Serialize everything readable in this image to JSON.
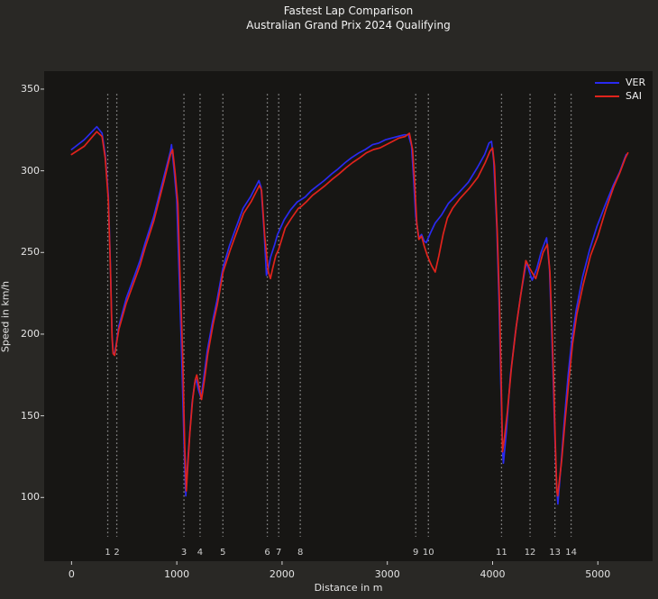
{
  "title": {
    "line1": "Fastest Lap Comparison",
    "line2": "Australian Grand Prix 2024 Qualifying"
  },
  "colors": {
    "figure_bg": "#292825",
    "axes_bg": "#171614",
    "text": "#ececec",
    "ver_blue": "#2a2af0",
    "sai_red": "#e0231c",
    "corner_line": "#919191"
  },
  "legend": {
    "entries": [
      {
        "label": "VER",
        "color": "#2a2af0"
      },
      {
        "label": "SAI",
        "color": "#e0231c"
      }
    ]
  },
  "chart_data": {
    "type": "line",
    "title": "Fastest Lap Comparison — Australian Grand Prix 2024 Qualifying",
    "xlabel": "Distance in m",
    "ylabel": "Speed in km/h",
    "xlim": [
      -260,
      5520
    ],
    "ylim": [
      61,
      361
    ],
    "x_ticks": [
      0,
      1000,
      2000,
      3000,
      4000,
      5000
    ],
    "y_ticks": [
      100,
      150,
      200,
      250,
      300,
      350
    ],
    "grid": false,
    "legend_position": "upper right",
    "corners": {
      "line_style": "dotted",
      "line_span_kmh": [
        76,
        347
      ],
      "label_kmh": 66,
      "numbers": [
        1,
        2,
        3,
        4,
        5,
        6,
        7,
        8,
        9,
        10,
        11,
        12,
        13,
        14
      ],
      "distances_m": [
        344,
        430,
        1068,
        1221,
        1438,
        1860,
        1968,
        2173,
        3270,
        3390,
        4085,
        4356,
        4592,
        4746
      ]
    },
    "series": [
      {
        "name": "VER",
        "color": "#2a2af0",
        "points": [
          [
            0,
            313
          ],
          [
            120,
            319
          ],
          [
            240,
            327
          ],
          [
            290,
            323
          ],
          [
            320,
            310
          ],
          [
            350,
            285
          ],
          [
            370,
            240
          ],
          [
            385,
            200
          ],
          [
            395,
            189
          ],
          [
            410,
            188
          ],
          [
            427,
            195
          ],
          [
            450,
            205
          ],
          [
            520,
            222
          ],
          [
            600,
            236
          ],
          [
            650,
            245
          ],
          [
            700,
            256
          ],
          [
            780,
            272
          ],
          [
            880,
            297
          ],
          [
            940,
            312
          ],
          [
            950,
            316
          ],
          [
            975,
            300
          ],
          [
            1000,
            282
          ],
          [
            1020,
            240
          ],
          [
            1045,
            190
          ],
          [
            1068,
            135
          ],
          [
            1085,
            101
          ],
          [
            1100,
            118
          ],
          [
            1120,
            137
          ],
          [
            1145,
            158
          ],
          [
            1170,
            170
          ],
          [
            1184,
            172
          ],
          [
            1205,
            166
          ],
          [
            1230,
            161
          ],
          [
            1260,
            175
          ],
          [
            1290,
            190
          ],
          [
            1340,
            208
          ],
          [
            1380,
            220
          ],
          [
            1436,
            240
          ],
          [
            1500,
            254
          ],
          [
            1550,
            263
          ],
          [
            1630,
            277
          ],
          [
            1700,
            284
          ],
          [
            1780,
            294
          ],
          [
            1800,
            290
          ],
          [
            1830,
            262
          ],
          [
            1852,
            236
          ],
          [
            1870,
            240
          ],
          [
            1890,
            247
          ],
          [
            1930,
            255
          ],
          [
            1957,
            261
          ],
          [
            2020,
            270
          ],
          [
            2080,
            276
          ],
          [
            2145,
            281
          ],
          [
            2171,
            282
          ],
          [
            2220,
            284
          ],
          [
            2280,
            288
          ],
          [
            2340,
            291
          ],
          [
            2400,
            294
          ],
          [
            2470,
            298
          ],
          [
            2530,
            301
          ],
          [
            2600,
            305
          ],
          [
            2660,
            308
          ],
          [
            2730,
            311
          ],
          [
            2790,
            313
          ],
          [
            2860,
            316
          ],
          [
            2920,
            317
          ],
          [
            2980,
            319
          ],
          [
            3040,
            320
          ],
          [
            3100,
            321
          ],
          [
            3160,
            322
          ],
          [
            3200,
            322
          ],
          [
            3230,
            315
          ],
          [
            3250,
            295
          ],
          [
            3270,
            272
          ],
          [
            3300,
            259
          ],
          [
            3325,
            261
          ],
          [
            3350,
            257
          ],
          [
            3370,
            256
          ],
          [
            3410,
            262
          ],
          [
            3455,
            268
          ],
          [
            3515,
            273
          ],
          [
            3580,
            280
          ],
          [
            3685,
            287
          ],
          [
            3770,
            293
          ],
          [
            3855,
            302
          ],
          [
            3925,
            310
          ],
          [
            3966,
            317
          ],
          [
            3990,
            318
          ],
          [
            4010,
            306
          ],
          [
            4040,
            265
          ],
          [
            4060,
            222
          ],
          [
            4078,
            170
          ],
          [
            4095,
            128
          ],
          [
            4103,
            121
          ],
          [
            4130,
            140
          ],
          [
            4170,
            175
          ],
          [
            4215,
            200
          ],
          [
            4265,
            223
          ],
          [
            4310,
            240
          ],
          [
            4325,
            244
          ],
          [
            4350,
            238
          ],
          [
            4376,
            233
          ],
          [
            4420,
            240
          ],
          [
            4460,
            250
          ],
          [
            4495,
            256
          ],
          [
            4513,
            259
          ],
          [
            4540,
            240
          ],
          [
            4557,
            210
          ],
          [
            4575,
            175
          ],
          [
            4590,
            140
          ],
          [
            4608,
            108
          ],
          [
            4620,
            96
          ],
          [
            4650,
            120
          ],
          [
            4685,
            150
          ],
          [
            4718,
            175
          ],
          [
            4752,
            196
          ],
          [
            4795,
            215
          ],
          [
            4855,
            235
          ],
          [
            4923,
            252
          ],
          [
            4992,
            266
          ],
          [
            5070,
            279
          ],
          [
            5146,
            291
          ],
          [
            5206,
            299
          ],
          [
            5257,
            308
          ],
          [
            5270,
            310
          ]
        ]
      },
      {
        "name": "SAI",
        "color": "#e0231c",
        "points": [
          [
            0,
            310
          ],
          [
            120,
            315
          ],
          [
            240,
            324
          ],
          [
            290,
            321
          ],
          [
            320,
            308
          ],
          [
            350,
            282
          ],
          [
            370,
            238
          ],
          [
            385,
            198
          ],
          [
            395,
            188
          ],
          [
            410,
            187
          ],
          [
            427,
            194
          ],
          [
            450,
            203
          ],
          [
            520,
            219
          ],
          [
            600,
            233
          ],
          [
            650,
            242
          ],
          [
            700,
            253
          ],
          [
            780,
            269
          ],
          [
            880,
            294
          ],
          [
            940,
            310
          ],
          [
            960,
            313
          ],
          [
            985,
            298
          ],
          [
            1010,
            280
          ],
          [
            1030,
            238
          ],
          [
            1055,
            188
          ],
          [
            1075,
            132
          ],
          [
            1090,
            104
          ],
          [
            1105,
            120
          ],
          [
            1125,
            140
          ],
          [
            1150,
            160
          ],
          [
            1175,
            172
          ],
          [
            1190,
            175
          ],
          [
            1210,
            168
          ],
          [
            1235,
            160
          ],
          [
            1265,
            173
          ],
          [
            1295,
            188
          ],
          [
            1345,
            206
          ],
          [
            1385,
            218
          ],
          [
            1440,
            238
          ],
          [
            1505,
            251
          ],
          [
            1555,
            260
          ],
          [
            1635,
            274
          ],
          [
            1705,
            281
          ],
          [
            1785,
            291
          ],
          [
            1805,
            288
          ],
          [
            1835,
            260
          ],
          [
            1870,
            238
          ],
          [
            1889,
            234
          ],
          [
            1910,
            240
          ],
          [
            1940,
            248
          ],
          [
            1968,
            252
          ],
          [
            2030,
            265
          ],
          [
            2090,
            271
          ],
          [
            2155,
            277
          ],
          [
            2180,
            278
          ],
          [
            2230,
            281
          ],
          [
            2290,
            285
          ],
          [
            2350,
            288
          ],
          [
            2410,
            291
          ],
          [
            2480,
            295
          ],
          [
            2540,
            298
          ],
          [
            2610,
            302
          ],
          [
            2670,
            305
          ],
          [
            2740,
            308
          ],
          [
            2800,
            311
          ],
          [
            2870,
            313
          ],
          [
            2930,
            314
          ],
          [
            2990,
            316
          ],
          [
            3050,
            318
          ],
          [
            3110,
            320
          ],
          [
            3170,
            321
          ],
          [
            3210,
            323
          ],
          [
            3240,
            313
          ],
          [
            3260,
            292
          ],
          [
            3280,
            268
          ],
          [
            3300,
            258
          ],
          [
            3325,
            260
          ],
          [
            3350,
            254
          ],
          [
            3380,
            248
          ],
          [
            3420,
            242
          ],
          [
            3455,
            238
          ],
          [
            3490,
            248
          ],
          [
            3530,
            261
          ],
          [
            3570,
            271
          ],
          [
            3620,
            277
          ],
          [
            3690,
            283
          ],
          [
            3775,
            289
          ],
          [
            3860,
            296
          ],
          [
            3930,
            305
          ],
          [
            3975,
            312
          ],
          [
            4000,
            314
          ],
          [
            4018,
            303
          ],
          [
            4045,
            262
          ],
          [
            4065,
            220
          ],
          [
            4082,
            170
          ],
          [
            4094,
            128
          ],
          [
            4110,
            135
          ],
          [
            4140,
            152
          ],
          [
            4180,
            180
          ],
          [
            4225,
            205
          ],
          [
            4270,
            225
          ],
          [
            4316,
            245
          ],
          [
            4355,
            240
          ],
          [
            4410,
            234
          ],
          [
            4445,
            242
          ],
          [
            4480,
            250
          ],
          [
            4521,
            255
          ],
          [
            4545,
            238
          ],
          [
            4562,
            208
          ],
          [
            4580,
            172
          ],
          [
            4595,
            135
          ],
          [
            4610,
            104
          ],
          [
            4618,
            101
          ],
          [
            4655,
            122
          ],
          [
            4690,
            148
          ],
          [
            4725,
            172
          ],
          [
            4760,
            194
          ],
          [
            4800,
            212
          ],
          [
            4860,
            230
          ],
          [
            4930,
            248
          ],
          [
            5000,
            260
          ],
          [
            5075,
            276
          ],
          [
            5150,
            290
          ],
          [
            5210,
            299
          ],
          [
            5262,
            308
          ],
          [
            5285,
            311
          ]
        ]
      }
    ]
  }
}
